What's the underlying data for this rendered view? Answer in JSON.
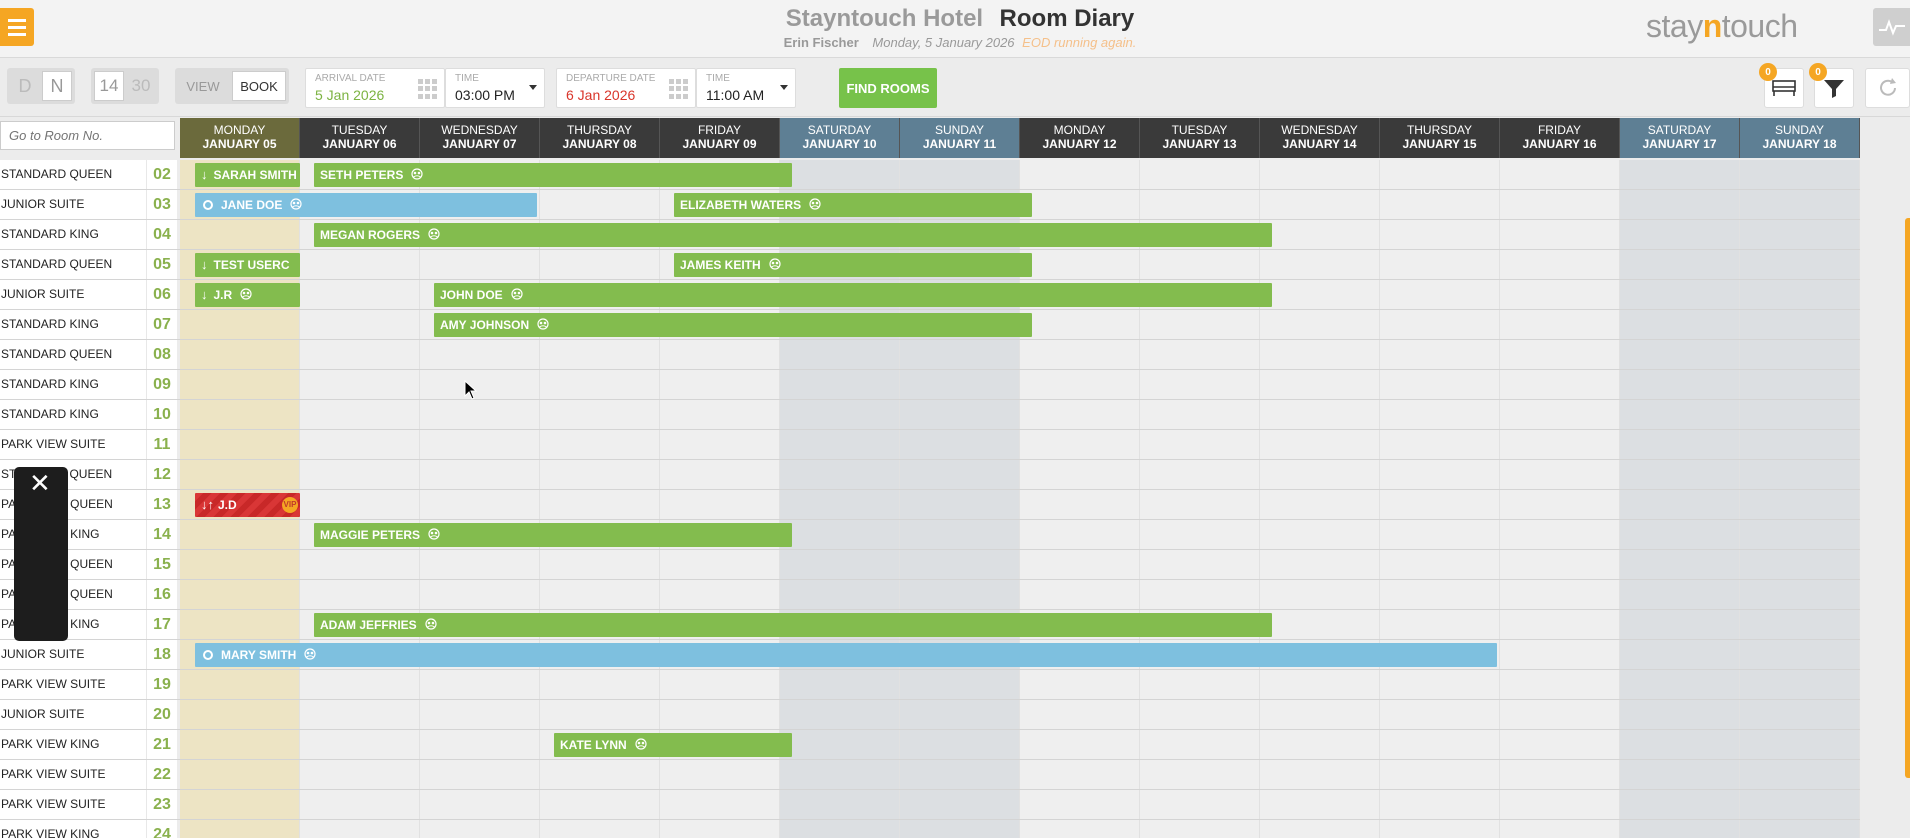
{
  "header": {
    "hotel_name": "Stayntouch Hotel",
    "page_title": "Room Diary",
    "user_name": "Erin Fischer",
    "business_date": "Monday, 5 January 2026",
    "eod_status": "EOD running again.",
    "logo_prefix": "stay",
    "logo_n": "n",
    "logo_suffix": "touch"
  },
  "toolbar": {
    "mode_d": "D",
    "mode_n": "N",
    "range_14": "14",
    "range_30": "30",
    "view_label": "VIEW",
    "book_label": "BOOK",
    "arrival_label": "ARRIVAL DATE",
    "arrival_value": "5 Jan 2026",
    "arrival_time_label": "TIME",
    "arrival_time_value": "03:00 PM",
    "departure_label": "DEPARTURE DATE",
    "departure_value": "6 Jan 2026",
    "departure_time_label": "TIME",
    "departure_time_value": "11:00 AM",
    "find_rooms_label": "FIND ROOMS",
    "rooms_badge": "0",
    "filter_badge": "0"
  },
  "room_search": {
    "placeholder": "Go to Room No."
  },
  "days": [
    {
      "name": "MONDAY",
      "date": "JANUARY 05",
      "kind": "today"
    },
    {
      "name": "TUESDAY",
      "date": "JANUARY 06",
      "kind": "weekday"
    },
    {
      "name": "WEDNESDAY",
      "date": "JANUARY 07",
      "kind": "weekday"
    },
    {
      "name": "THURSDAY",
      "date": "JANUARY 08",
      "kind": "weekday"
    },
    {
      "name": "FRIDAY",
      "date": "JANUARY 09",
      "kind": "weekday"
    },
    {
      "name": "SATURDAY",
      "date": "JANUARY 10",
      "kind": "weekend"
    },
    {
      "name": "SUNDAY",
      "date": "JANUARY 11",
      "kind": "weekend"
    },
    {
      "name": "MONDAY",
      "date": "JANUARY 12",
      "kind": "weekday"
    },
    {
      "name": "TUESDAY",
      "date": "JANUARY 13",
      "kind": "weekday"
    },
    {
      "name": "WEDNESDAY",
      "date": "JANUARY 14",
      "kind": "weekday"
    },
    {
      "name": "THURSDAY",
      "date": "JANUARY 15",
      "kind": "weekday"
    },
    {
      "name": "FRIDAY",
      "date": "JANUARY 16",
      "kind": "weekday"
    },
    {
      "name": "SATURDAY",
      "date": "JANUARY 17",
      "kind": "weekend"
    },
    {
      "name": "SUNDAY",
      "date": "JANUARY 18",
      "kind": "weekend"
    }
  ],
  "rooms": [
    {
      "type": "STANDARD QUEEN",
      "number": "02"
    },
    {
      "type": "JUNIOR SUITE",
      "number": "03"
    },
    {
      "type": "STANDARD KING",
      "number": "04"
    },
    {
      "type": "STANDARD QUEEN",
      "number": "05"
    },
    {
      "type": "JUNIOR SUITE",
      "number": "06"
    },
    {
      "type": "STANDARD KING",
      "number": "07"
    },
    {
      "type": "STANDARD QUEEN",
      "number": "08"
    },
    {
      "type": "STANDARD KING",
      "number": "09"
    },
    {
      "type": "STANDARD KING",
      "number": "10"
    },
    {
      "type": "PARK VIEW SUITE",
      "number": "11"
    },
    {
      "type": "STANDARD QUEEN",
      "number": "12"
    },
    {
      "type": "PARK VIEW QUEEN",
      "number": "13"
    },
    {
      "type": "PARK VIEW KING",
      "number": "14"
    },
    {
      "type": "PARK VIEW QUEEN",
      "number": "15"
    },
    {
      "type": "PARK VIEW QUEEN",
      "number": "16"
    },
    {
      "type": "PARK VIEW KING",
      "number": "17"
    },
    {
      "type": "JUNIOR SUITE",
      "number": "18"
    },
    {
      "type": "PARK VIEW SUITE",
      "number": "19"
    },
    {
      "type": "JUNIOR SUITE",
      "number": "20"
    },
    {
      "type": "PARK VIEW KING",
      "number": "21"
    },
    {
      "type": "PARK VIEW SUITE",
      "number": "22"
    },
    {
      "type": "PARK VIEW SUITE",
      "number": "23"
    },
    {
      "type": "PARK VIEW KING",
      "number": "24"
    }
  ],
  "reservations": [
    {
      "room": 0,
      "guest": "SARAH SMITH",
      "color": "green",
      "status": "arrival",
      "group_icon": false,
      "start_day": 0,
      "length_days": 1
    },
    {
      "room": 0,
      "guest": "SETH PETERS",
      "color": "green",
      "status": "",
      "group_icon": true,
      "start_day": 1,
      "length_days": 4
    },
    {
      "room": 1,
      "guest": "JANE DOE",
      "color": "blue",
      "status": "reserved",
      "group_icon": true,
      "start_day": 0,
      "length_days": 3
    },
    {
      "room": 1,
      "guest": "ELIZABETH WATERS",
      "color": "green",
      "status": "",
      "group_icon": true,
      "start_day": 4,
      "length_days": 3
    },
    {
      "room": 2,
      "guest": "MEGAN ROGERS",
      "color": "green",
      "status": "",
      "group_icon": true,
      "start_day": 1,
      "length_days": 8
    },
    {
      "room": 3,
      "guest": "TEST USERC",
      "color": "green",
      "status": "arrival",
      "group_icon": false,
      "start_day": 0,
      "length_days": 1
    },
    {
      "room": 3,
      "guest": "JAMES KEITH",
      "color": "green",
      "status": "",
      "group_icon": true,
      "start_day": 4,
      "length_days": 3
    },
    {
      "room": 4,
      "guest": "J.R",
      "color": "green",
      "status": "arrival",
      "group_icon": true,
      "start_day": 0,
      "length_days": 1
    },
    {
      "room": 4,
      "guest": "JOHN DOE",
      "color": "green",
      "status": "",
      "group_icon": true,
      "start_day": 2,
      "length_days": 7
    },
    {
      "room": 5,
      "guest": "AMY JOHNSON",
      "color": "green",
      "status": "",
      "group_icon": true,
      "start_day": 2,
      "length_days": 5
    },
    {
      "room": 11,
      "guest": "J.D",
      "color": "red",
      "status": "arrival-departure",
      "group_icon": false,
      "vip": "VIP",
      "start_day": 0,
      "length_days": 1
    },
    {
      "room": 12,
      "guest": "MAGGIE PETERS",
      "color": "green",
      "status": "",
      "group_icon": true,
      "start_day": 1,
      "length_days": 4
    },
    {
      "room": 15,
      "guest": "ADAM JEFFRIES",
      "color": "green",
      "status": "",
      "group_icon": true,
      "start_day": 1,
      "length_days": 8
    },
    {
      "room": 16,
      "guest": "MARY SMITH",
      "color": "blue",
      "status": "reserved",
      "group_icon": true,
      "start_day": 0,
      "length_days": 11
    },
    {
      "room": 19,
      "guest": "KATE LYNN",
      "color": "green",
      "status": "",
      "group_icon": true,
      "start_day": 3,
      "length_days": 2
    }
  ],
  "colors": {
    "accent": "#f5a623",
    "reservation_green": "#83bc4e",
    "reservation_blue": "#7ec0df",
    "reservation_red": "#d93636",
    "room_number": "#8ab14e"
  }
}
